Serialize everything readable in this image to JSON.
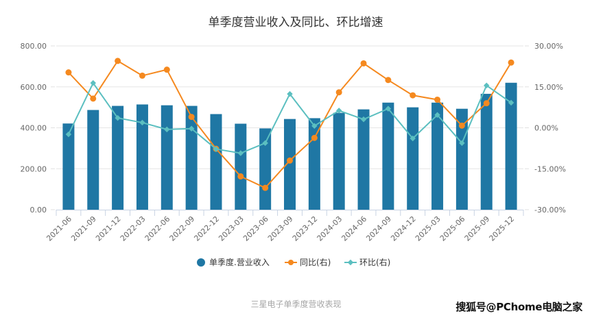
{
  "chart_data": {
    "type": "bar",
    "title": "单季度营业收入及同比、环比增速",
    "categories": [
      "2021-06",
      "2021-09",
      "2021-12",
      "2022-03",
      "2022-06",
      "2022-09",
      "2022-12",
      "2023-03",
      "2023-06",
      "2023-09",
      "2023-12",
      "2024-03",
      "2024-06",
      "2024-09",
      "2024-12",
      "2025-03",
      "2025-06",
      "2025-09",
      "2025-12"
    ],
    "series": [
      {
        "name": "单季度.营业收入",
        "type": "bar",
        "axis": "left",
        "color": "#1f77a4",
        "values": [
          421,
          487,
          507,
          514,
          510,
          507,
          467,
          420,
          397,
          443,
          447,
          473,
          490,
          523,
          500,
          523,
          493,
          566,
          620
        ]
      },
      {
        "name": "同比(右)",
        "type": "line",
        "axis": "right",
        "unit": "%",
        "color": "#f5891f",
        "marker": "circle",
        "values": [
          20.3,
          10.7,
          24.5,
          19.1,
          21.3,
          4.0,
          -7.7,
          -17.8,
          -22.0,
          -12.0,
          -3.7,
          13.0,
          23.6,
          17.5,
          11.9,
          10.3,
          0.8,
          9.0,
          23.9
        ]
      },
      {
        "name": "环比(右)",
        "type": "line",
        "axis": "right",
        "unit": "%",
        "color": "#5bbfc0",
        "marker": "diamond",
        "values": [
          -2.4,
          16.4,
          3.6,
          1.9,
          -0.6,
          -0.3,
          -7.8,
          -9.3,
          -5.6,
          12.4,
          0.7,
          6.3,
          3.1,
          7.0,
          -3.9,
          4.7,
          -5.6,
          15.5,
          9.2
        ]
      }
    ],
    "y_left": {
      "range": [
        0,
        800
      ],
      "ticks": [
        "0.00",
        "200.00",
        "400.00",
        "600.00",
        "800.00"
      ],
      "tick_values": [
        0,
        200,
        400,
        600,
        800
      ]
    },
    "y_right": {
      "range": [
        -30,
        30
      ],
      "ticks": [
        "-30.00%",
        "-15.00%",
        "0.00%",
        "15.00%",
        "30.00%"
      ],
      "tick_values": [
        -30,
        -15,
        0,
        15,
        30
      ]
    },
    "xlabel": "",
    "ylabel": "",
    "grid": true,
    "legend_position": "bottom-center"
  },
  "caption": "三星电子单季度营收表现",
  "watermark": "搜狐号@PChome电脑之家"
}
